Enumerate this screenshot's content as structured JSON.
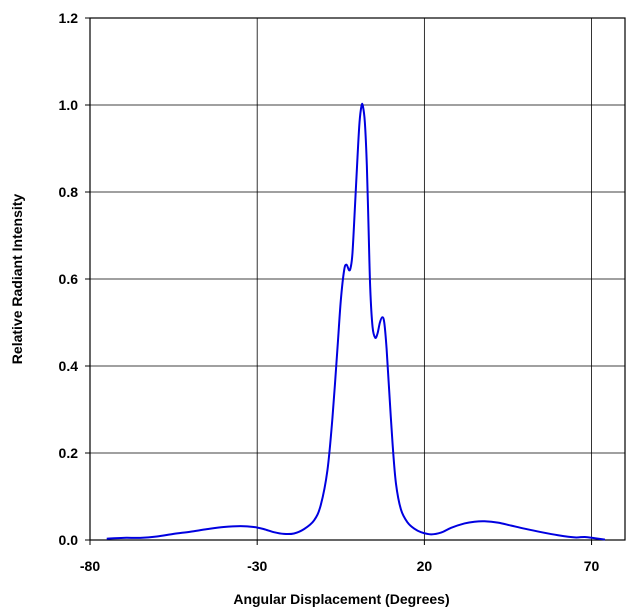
{
  "chart_data": {
    "type": "line",
    "title": "",
    "xlabel": "Angular Displacement (Degrees)",
    "ylabel": "Relative Radiant Intensity",
    "xlim": [
      -80,
      80
    ],
    "ylim": [
      0,
      1.2
    ],
    "xticks": [
      -80,
      -30,
      20,
      70
    ],
    "xtick_labels": [
      "-80",
      "-30",
      "20",
      "70"
    ],
    "yticks": [
      0,
      0.2,
      0.4,
      0.6,
      0.8,
      1.0,
      1.2
    ],
    "ytick_labels": [
      "0.0",
      "0.2",
      "0.4",
      "0.6",
      "0.8",
      "1.0",
      "1.2"
    ],
    "grid": true,
    "legend": "none",
    "series": [
      {
        "color": "#0000e0",
        "points": [
          [
            -75,
            0.003
          ],
          [
            -70,
            0.005
          ],
          [
            -65,
            0.005
          ],
          [
            -60,
            0.008
          ],
          [
            -55,
            0.014
          ],
          [
            -50,
            0.019
          ],
          [
            -45,
            0.025
          ],
          [
            -40,
            0.03
          ],
          [
            -35,
            0.032
          ],
          [
            -31,
            0.03
          ],
          [
            -28,
            0.025
          ],
          [
            -25,
            0.018
          ],
          [
            -22,
            0.014
          ],
          [
            -19,
            0.015
          ],
          [
            -16,
            0.025
          ],
          [
            -13,
            0.045
          ],
          [
            -11,
            0.08
          ],
          [
            -9,
            0.16
          ],
          [
            -7.5,
            0.28
          ],
          [
            -6,
            0.44
          ],
          [
            -5,
            0.55
          ],
          [
            -4,
            0.62
          ],
          [
            -3.3,
            0.633
          ],
          [
            -2.5,
            0.62
          ],
          [
            -2,
            0.628
          ],
          [
            -1.5,
            0.66
          ],
          [
            -0.8,
            0.76
          ],
          [
            0,
            0.88
          ],
          [
            0.6,
            0.96
          ],
          [
            1.2,
            0.998
          ],
          [
            1.6,
            0.998
          ],
          [
            2.2,
            0.96
          ],
          [
            2.8,
            0.86
          ],
          [
            3.3,
            0.72
          ],
          [
            3.8,
            0.58
          ],
          [
            4.5,
            0.49
          ],
          [
            5.3,
            0.465
          ],
          [
            6,
            0.475
          ],
          [
            6.7,
            0.5
          ],
          [
            7.4,
            0.512
          ],
          [
            8,
            0.5
          ],
          [
            8.7,
            0.44
          ],
          [
            9.5,
            0.34
          ],
          [
            10.5,
            0.22
          ],
          [
            11.5,
            0.13
          ],
          [
            13,
            0.07
          ],
          [
            15,
            0.04
          ],
          [
            17,
            0.026
          ],
          [
            19,
            0.018
          ],
          [
            22,
            0.013
          ],
          [
            25,
            0.017
          ],
          [
            28,
            0.028
          ],
          [
            32,
            0.038
          ],
          [
            35,
            0.042
          ],
          [
            38,
            0.043
          ],
          [
            42,
            0.04
          ],
          [
            46,
            0.033
          ],
          [
            50,
            0.026
          ],
          [
            55,
            0.018
          ],
          [
            60,
            0.011
          ],
          [
            65,
            0.006
          ],
          [
            68,
            0.007
          ],
          [
            71,
            0.004
          ],
          [
            74,
            0.001
          ]
        ]
      }
    ]
  }
}
